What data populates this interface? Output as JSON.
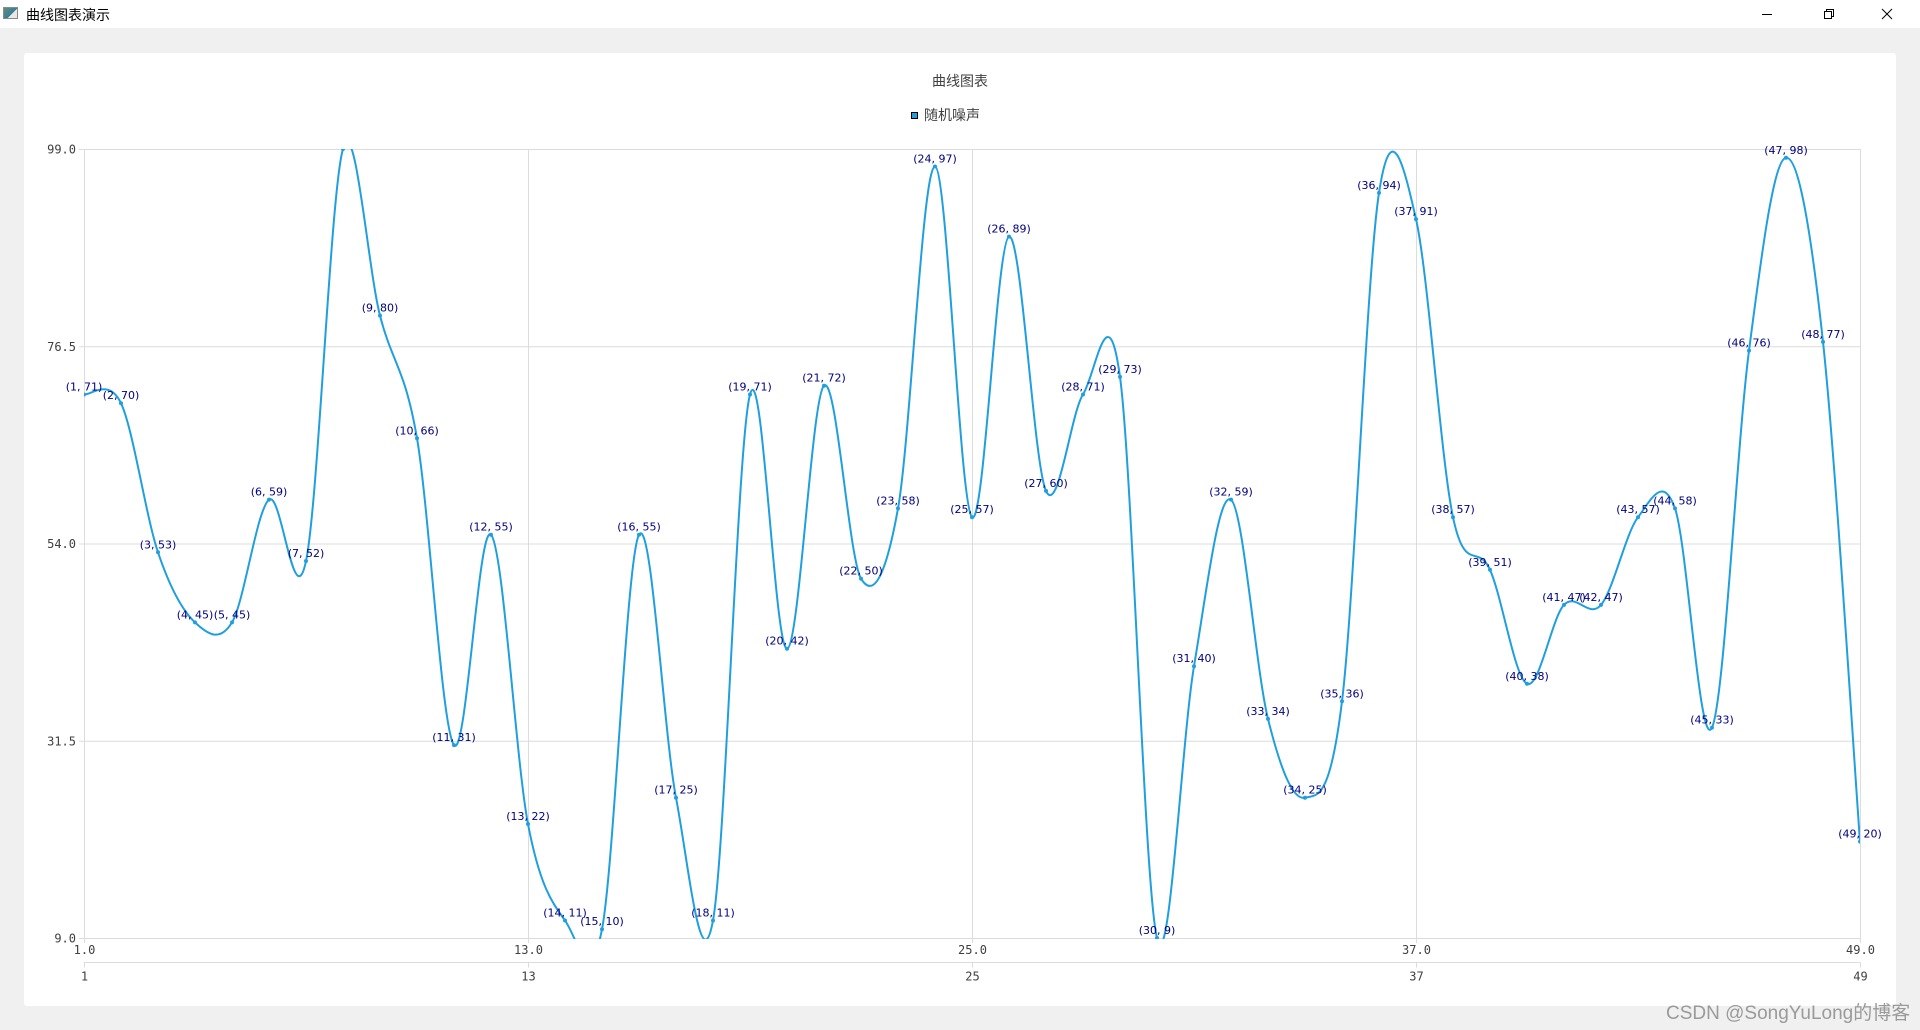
{
  "window": {
    "title": "曲线图表演示",
    "icon": "app-window-icon",
    "controls": {
      "minimize": "minimize-icon",
      "restore": "restore-icon",
      "close": "close-icon"
    }
  },
  "watermark": "CSDN @SongYuLong的博客",
  "colors": {
    "series": "#209fdf",
    "label": "#000080",
    "grid": "#dcdcdc",
    "axis_text": "#404040",
    "background": "#f0f0f0"
  },
  "chart_data": {
    "type": "line",
    "smooth": true,
    "title": "曲线图表",
    "legend": [
      {
        "name": "随机噪声",
        "color": "#209fdf",
        "position": "top"
      }
    ],
    "xlabel": "",
    "ylabel": "",
    "xlim": [
      1,
      49
    ],
    "ylim": [
      9,
      99
    ],
    "grid": true,
    "y_ticks": [
      "99.0",
      "76.5",
      "54.0",
      "31.5",
      "9.0"
    ],
    "x_ticks_value_axis": [
      "1.0",
      "13.0",
      "25.0",
      "37.0",
      "49.0"
    ],
    "x_ticks_category_axis": [
      "1",
      "13",
      "25",
      "37",
      "49"
    ],
    "point_labels_visible": true,
    "point_label_format": "(x, y)",
    "series": [
      {
        "name": "随机噪声",
        "x": [
          1,
          2,
          3,
          4,
          5,
          6,
          7,
          8,
          9,
          10,
          11,
          12,
          13,
          14,
          15,
          16,
          17,
          18,
          19,
          20,
          21,
          22,
          23,
          24,
          25,
          26,
          27,
          28,
          29,
          30,
          31,
          32,
          33,
          34,
          35,
          36,
          37,
          38,
          39,
          40,
          41,
          42,
          43,
          44,
          45,
          46,
          47,
          48,
          49
        ],
        "values": [
          71,
          70,
          53,
          45,
          45,
          59,
          52,
          99,
          80,
          66,
          31,
          55,
          22,
          11,
          10,
          55,
          25,
          11,
          71,
          42,
          72,
          50,
          58,
          97,
          57,
          89,
          60,
          71,
          73,
          9,
          40,
          59,
          34,
          25,
          36,
          94,
          91,
          57,
          51,
          38,
          47,
          47,
          57,
          58,
          33,
          76,
          98,
          77,
          20
        ]
      }
    ]
  }
}
